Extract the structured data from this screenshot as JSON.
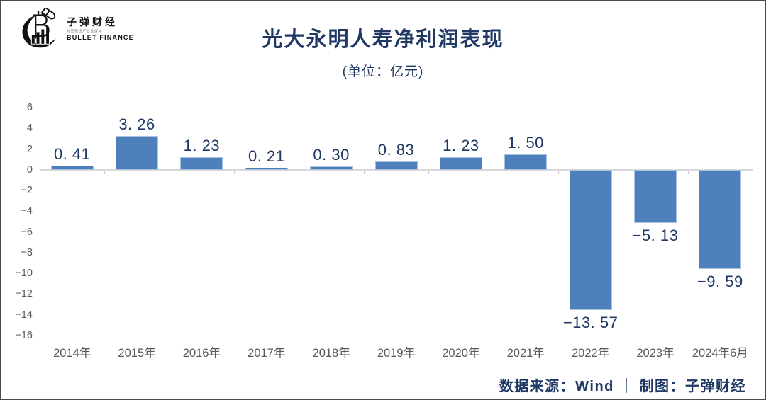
{
  "logo": {
    "brand": "子弹财经",
    "tagline": "财经新锐产业全媒体",
    "brand_en": "BULLET FINANCE"
  },
  "header": {
    "title": "光大永明人寿净利润表现",
    "subtitle": "(单位：亿元)"
  },
  "footer": {
    "text": "数据来源：Wind ｜ 制图：子弹财经"
  },
  "chart_data": {
    "type": "bar",
    "title": "光大永明人寿净利润表现",
    "subtitle": "(单位：亿元)",
    "categories": [
      "2014年",
      "2015年",
      "2016年",
      "2017年",
      "2018年",
      "2019年",
      "2020年",
      "2021年",
      "2022年",
      "2023年",
      "2024年6月"
    ],
    "values": [
      0.41,
      3.26,
      1.23,
      0.21,
      0.3,
      0.83,
      1.23,
      1.5,
      -13.57,
      -5.13,
      -9.59
    ],
    "value_labels": [
      "0. 41",
      "3. 26",
      "1. 23",
      "0. 21",
      "0. 30",
      "0. 83",
      "1. 23",
      "1. 50",
      "−13. 57",
      "−5. 13",
      "−9. 59"
    ],
    "ylabel": "亿元",
    "xlabel": "",
    "ylim": [
      -16,
      6
    ],
    "ytick_step": 2,
    "grid": false,
    "legend_position": "none",
    "bar_color": "#4e80bc",
    "bar_border_color": "#a9c2e0",
    "value_label_color": "#1f3864",
    "axis_text_color": "#595959",
    "axis_line_color": "#d9d9d9"
  }
}
